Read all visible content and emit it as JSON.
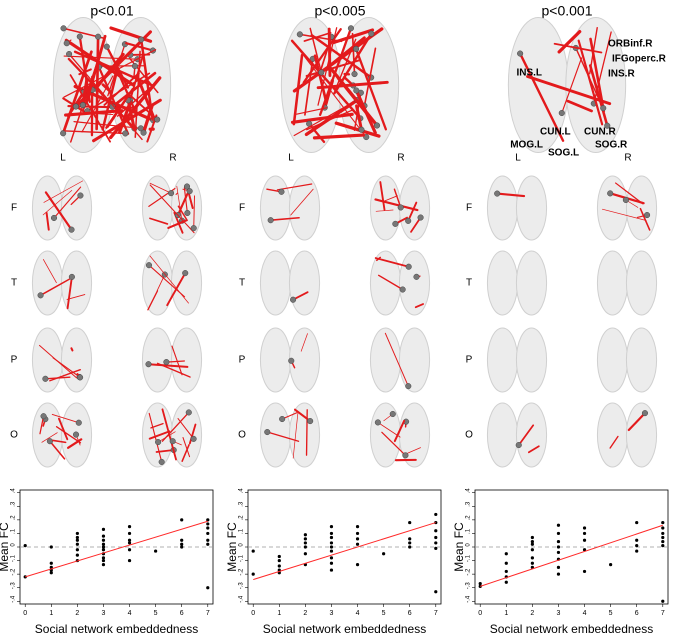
{
  "panels": [
    {
      "title": "p<0.01",
      "hemispheres": [
        "L",
        "R"
      ],
      "lobes": [
        "F",
        "T",
        "P",
        "O"
      ]
    },
    {
      "title": "p<0.005",
      "hemispheres": [
        "L",
        "R"
      ],
      "lobes": [
        "F",
        "T",
        "P",
        "O"
      ]
    },
    {
      "title": "p<0.001",
      "hemispheres": [
        "L",
        "R"
      ],
      "lobes": [
        "F",
        "T",
        "P",
        "O"
      ],
      "regions": [
        "ORBinf.R",
        "IFGoperc.R",
        "INS.R",
        "INS.L",
        "CUN.L",
        "CUN.R",
        "MOG.L",
        "SOG.L",
        "SOG.R"
      ]
    }
  ],
  "chart_data": [
    {
      "type": "scatter",
      "xlabel": "Social network embeddedness",
      "ylabel": "Mean FC",
      "xlim": [
        -0.2,
        7.2
      ],
      "ylim": [
        -0.42,
        0.42
      ],
      "xticks": [
        0,
        1,
        2,
        3,
        4,
        5,
        6,
        7
      ],
      "yticks": [
        {
          "value": -0.4,
          "label": "-.4"
        },
        {
          "value": -0.3,
          "label": "-.3"
        },
        {
          "value": -0.2,
          "label": "-.2"
        },
        {
          "value": -0.1,
          "label": "-.1"
        },
        0,
        {
          "value": 0.1,
          "label": ".1"
        },
        {
          "value": 0.2,
          "label": ".2"
        },
        {
          "value": 0.3,
          "label": ".3"
        },
        {
          "value": 0.4,
          "label": ".4"
        }
      ],
      "reference_line": 0,
      "series": [
        {
          "color": "#000000",
          "x": [
            0,
            0,
            1,
            1,
            1,
            1,
            1,
            2,
            2,
            2,
            2,
            2,
            2,
            2,
            3,
            3,
            3,
            3,
            3,
            3,
            3,
            3,
            3,
            3,
            4,
            4,
            4,
            4,
            4,
            4,
            5,
            6,
            6,
            6,
            6,
            7,
            7,
            7,
            7,
            7,
            7,
            7
          ],
          "values": [
            0.01,
            -0.22,
            0.0,
            -0.12,
            -0.15,
            -0.17,
            -0.19,
            0.1,
            0.07,
            0.05,
            0.02,
            -0.02,
            -0.06,
            -0.1,
            0.13,
            0.08,
            0.05,
            0.02,
            0.0,
            -0.02,
            -0.05,
            -0.08,
            -0.1,
            -0.13,
            0.15,
            0.1,
            0.05,
            0.03,
            -0.02,
            -0.1,
            -0.03,
            0.2,
            0.05,
            0.02,
            0.0,
            0.2,
            0.17,
            0.14,
            0.1,
            0.05,
            0.02,
            -0.3
          ]
        },
        {
          "color": "#ff2a2a",
          "x": [
            0,
            7
          ],
          "values": [
            -0.22,
            0.19
          ]
        }
      ]
    },
    {
      "type": "scatter",
      "xlabel": "Social network embeddedness",
      "ylabel": "Mean FC",
      "xlim": [
        -0.2,
        7.2
      ],
      "ylim": [
        -0.42,
        0.42
      ],
      "xticks": [
        0,
        1,
        2,
        3,
        4,
        5,
        6,
        7
      ],
      "yticks": [
        {
          "value": -0.4,
          "label": "-.4"
        },
        {
          "value": -0.3,
          "label": "-.3"
        },
        {
          "value": -0.2,
          "label": "-.2"
        },
        {
          "value": -0.1,
          "label": "-.1"
        },
        0,
        {
          "value": 0.1,
          "label": ".1"
        },
        {
          "value": 0.2,
          "label": ".2"
        },
        {
          "value": 0.3,
          "label": ".3"
        },
        {
          "value": 0.4,
          "label": ".4"
        }
      ],
      "reference_line": 0,
      "series": [
        {
          "color": "#000000",
          "x": [
            0,
            0,
            1,
            1,
            1,
            1,
            1,
            2,
            2,
            2,
            2,
            2,
            2,
            3,
            3,
            3,
            3,
            3,
            3,
            3,
            3,
            3,
            4,
            4,
            4,
            4,
            4,
            5,
            6,
            6,
            6,
            6,
            7,
            7,
            7,
            7,
            7,
            7,
            7
          ],
          "values": [
            -0.03,
            -0.2,
            -0.07,
            -0.1,
            -0.14,
            -0.17,
            -0.19,
            0.09,
            0.06,
            0.03,
            0.0,
            -0.05,
            -0.13,
            0.15,
            0.1,
            0.07,
            0.03,
            0.0,
            -0.03,
            -0.08,
            -0.12,
            -0.17,
            0.15,
            0.1,
            0.06,
            0.02,
            -0.13,
            -0.05,
            0.18,
            0.06,
            0.03,
            0.0,
            0.24,
            0.18,
            0.12,
            0.07,
            0.03,
            -0.01,
            -0.33
          ]
        },
        {
          "color": "#ff2a2a",
          "x": [
            0,
            7
          ],
          "values": [
            -0.24,
            0.18
          ]
        }
      ]
    },
    {
      "type": "scatter",
      "xlabel": "Social network embeddedness",
      "ylabel": "Mean FC",
      "xlim": [
        -0.2,
        7.2
      ],
      "ylim": [
        -0.42,
        0.42
      ],
      "xticks": [
        0,
        1,
        2,
        3,
        4,
        5,
        6,
        7
      ],
      "yticks": [
        {
          "value": -0.4,
          "label": "-.4"
        },
        {
          "value": -0.3,
          "label": "-.3"
        },
        {
          "value": -0.2,
          "label": "-.2"
        },
        {
          "value": -0.1,
          "label": "-.1"
        },
        0,
        {
          "value": 0.1,
          "label": ".1"
        },
        {
          "value": 0.2,
          "label": ".2"
        },
        {
          "value": 0.3,
          "label": ".3"
        },
        {
          "value": 0.4,
          "label": ".4"
        }
      ],
      "reference_line": 0,
      "series": [
        {
          "color": "#000000",
          "x": [
            0,
            0,
            1,
            1,
            1,
            1,
            1,
            2,
            2,
            2,
            2,
            2,
            2,
            2,
            3,
            3,
            3,
            3,
            3,
            3,
            3,
            3,
            4,
            4,
            4,
            4,
            4,
            5,
            6,
            6,
            6,
            6,
            7,
            7,
            7,
            7,
            7,
            7,
            7
          ],
          "values": [
            -0.27,
            -0.29,
            -0.05,
            -0.12,
            -0.18,
            -0.22,
            -0.26,
            0.07,
            0.04,
            0.02,
            -0.02,
            -0.08,
            -0.12,
            -0.15,
            0.16,
            0.1,
            0.04,
            0.0,
            -0.04,
            -0.09,
            -0.15,
            -0.2,
            0.14,
            0.1,
            0.05,
            -0.02,
            -0.18,
            -0.13,
            0.18,
            0.05,
            0.01,
            -0.03,
            0.18,
            0.14,
            0.1,
            0.07,
            0.04,
            0.01,
            -0.4
          ]
        },
        {
          "color": "#ff2a2a",
          "x": [
            0,
            7
          ],
          "values": [
            -0.29,
            0.16
          ]
        }
      ]
    }
  ]
}
